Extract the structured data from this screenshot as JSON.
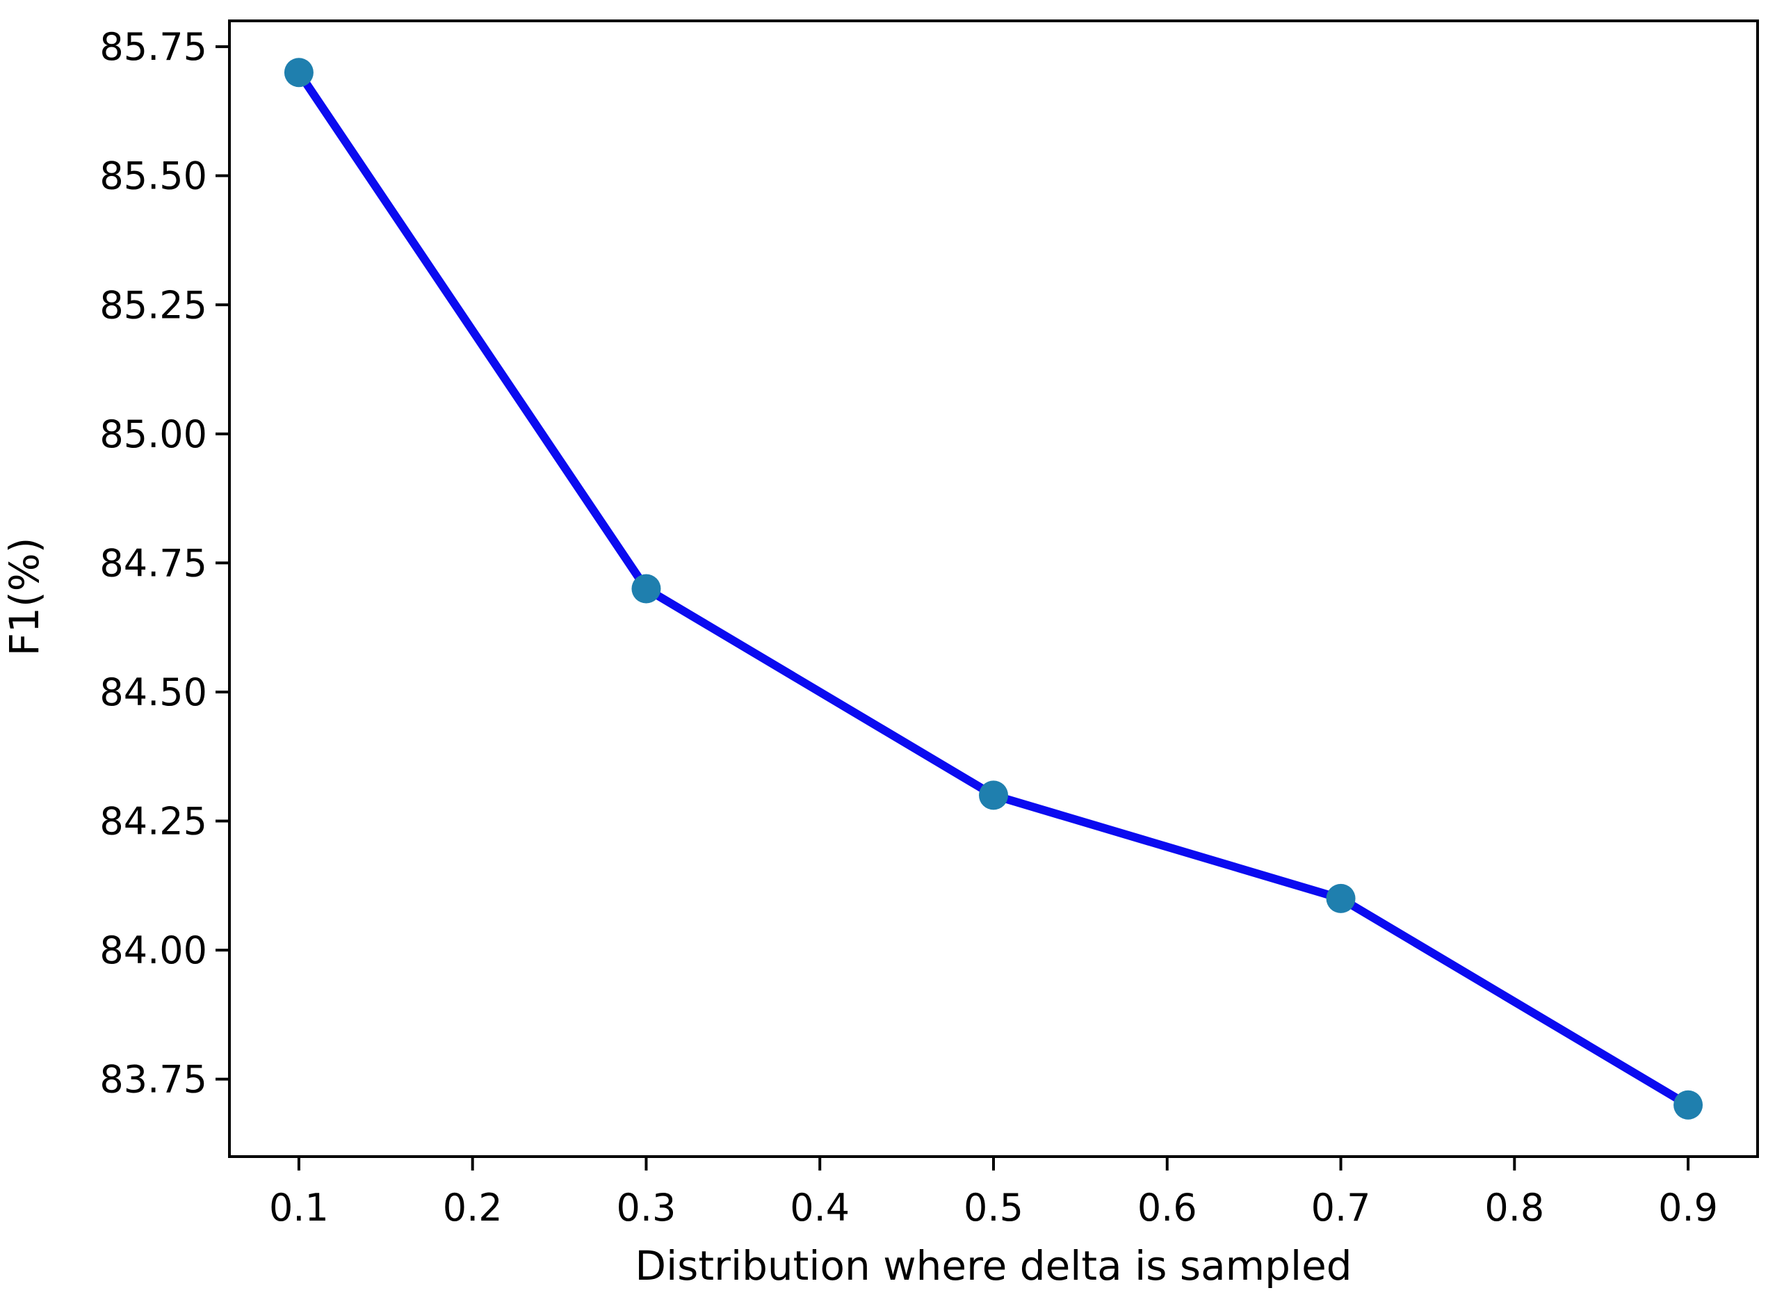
{
  "figure": {
    "background": "#ffffff"
  },
  "chart_data": {
    "type": "line",
    "title": "",
    "xlabel": "Distribution where delta is sampled",
    "ylabel": "F1(%)",
    "x": [
      0.1,
      0.3,
      0.5,
      0.7,
      0.9
    ],
    "y": [
      85.7,
      84.7,
      84.3,
      84.1,
      83.7
    ],
    "xlim": [
      0.06,
      0.94
    ],
    "ylim": [
      83.6,
      85.8
    ],
    "x_ticks": [
      0.1,
      0.2,
      0.3,
      0.4,
      0.5,
      0.6,
      0.7,
      0.8,
      0.9
    ],
    "x_tick_labels": [
      "0.1",
      "0.2",
      "0.3",
      "0.4",
      "0.5",
      "0.6",
      "0.7",
      "0.8",
      "0.9"
    ],
    "y_ticks": [
      83.75,
      84.0,
      84.25,
      84.5,
      84.75,
      85.0,
      85.25,
      85.5,
      85.75
    ],
    "y_tick_labels": [
      "83.75",
      "84.00",
      "84.25",
      "84.50",
      "84.75",
      "85.00",
      "85.25",
      "85.50",
      "85.75"
    ],
    "grid": false,
    "legend_position": "none",
    "line_color": "#0b0bf0",
    "marker_color": "#1f7fae",
    "axis_color": "#000000",
    "text_color": "#000000"
  }
}
